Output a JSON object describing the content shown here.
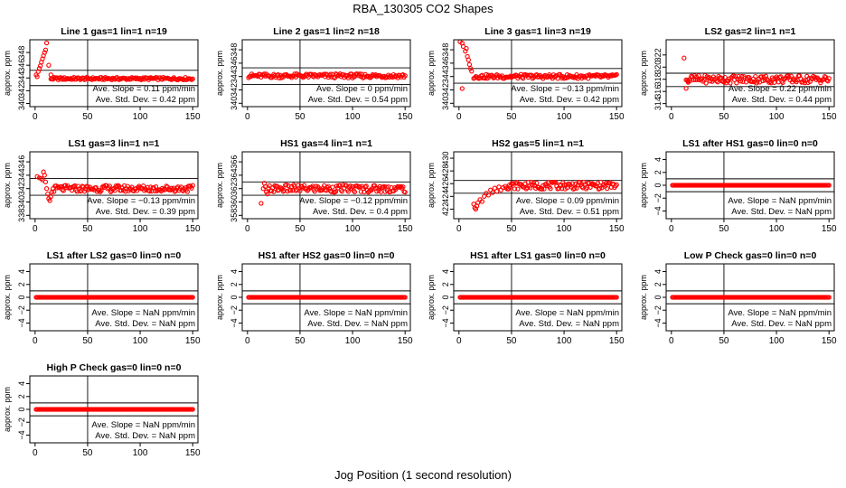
{
  "title": "RBA_130305  CO2 Shapes",
  "xlabel": "Jog Position (1 second resolution)",
  "chart_data": [
    {
      "type": "scatter",
      "title": "Line 1 gas=1 lin=1 n=19",
      "ylabel": "approx. ppm",
      "ylim": [
        339.5,
        350
      ],
      "yticks": [
        340,
        342,
        344,
        346,
        348
      ],
      "xlim": [
        -5,
        155
      ],
      "xticks": [
        0,
        50,
        100,
        150
      ],
      "vline": 50,
      "hlines": [
        342.8,
        345.2
      ],
      "slope_text": "Ave. Slope =  0.11  ppm/min",
      "sd_text": "Ave. Std. Dev. =  0.42  ppm",
      "series": {
        "base": 343.9,
        "noise": 0.12,
        "from": 15,
        "to": 150,
        "transient": [
          [
            1,
            344.5
          ],
          [
            2,
            344.2
          ],
          [
            3,
            345.0
          ],
          [
            4,
            345.5
          ],
          [
            5,
            345.9
          ],
          [
            6,
            346.5
          ],
          [
            7,
            347.0
          ],
          [
            8,
            347.5
          ],
          [
            9,
            348.0
          ],
          [
            10,
            348.4
          ],
          [
            11,
            349.5
          ],
          [
            13,
            346.0
          ],
          [
            15,
            344.5
          ]
        ]
      }
    },
    {
      "type": "scatter",
      "title": "Line 2 gas=1 lin=2 n=18",
      "ylabel": "approx. ppm",
      "ylim": [
        339.5,
        349.5
      ],
      "yticks": [
        340,
        342,
        344,
        346,
        348
      ],
      "xlim": [
        -5,
        155
      ],
      "xticks": [
        0,
        50,
        100,
        150
      ],
      "vline": 50,
      "hlines": [
        342.8,
        345.3
      ],
      "slope_text": "Ave. Slope =  0  ppm/min",
      "sd_text": "Ave. Std. Dev. =  0.54  ppm",
      "series": {
        "base": 344.1,
        "noise": 0.2,
        "from": 1,
        "to": 150,
        "transient": []
      }
    },
    {
      "type": "scatter",
      "title": "Line 3 gas=1 lin=3 n=19",
      "ylabel": "approx. ppm",
      "ylim": [
        339.5,
        349.5
      ],
      "yticks": [
        340,
        342,
        344,
        346,
        348
      ],
      "xlim": [
        -5,
        155
      ],
      "xticks": [
        0,
        50,
        100,
        150
      ],
      "vline": 50,
      "hlines": [
        343.0,
        345.2
      ],
      "slope_text": "Ave. Slope =  −0.13  ppm/min",
      "sd_text": "Ave. Std. Dev. =  0.42  ppm",
      "series": {
        "base": 344.0,
        "noise": 0.2,
        "from": 14,
        "to": 150,
        "transient": [
          [
            1,
            349.2
          ],
          [
            3,
            349.0
          ],
          [
            4,
            348.5
          ],
          [
            6,
            347.8
          ],
          [
            7,
            348.2
          ],
          [
            8,
            347.0
          ],
          [
            9,
            346.5
          ],
          [
            10,
            345.8
          ],
          [
            11,
            345.2
          ],
          [
            12,
            344.8
          ],
          [
            3,
            342.2
          ]
        ]
      }
    },
    {
      "type": "scatter",
      "title": "LS2 gas=2 lin=1 n=1",
      "ylabel": "approx. ppm",
      "ylim": [
        313.5,
        324.5
      ],
      "yticks": [
        314,
        316,
        318,
        320,
        322
      ],
      "xlim": [
        -5,
        155
      ],
      "xticks": [
        0,
        50,
        100,
        150
      ],
      "vline": 50,
      "hlines": [
        316.8,
        319.0
      ],
      "slope_text": "Ave. Slope =  0.22  ppm/min",
      "sd_text": "Ave. Std. Dev. =  0.44  ppm",
      "series": {
        "base": 318.0,
        "noise": 0.4,
        "from": 14,
        "to": 150,
        "transient": [
          [
            12,
            321.5
          ],
          [
            14,
            316.5
          ],
          [
            16,
            317.5
          ]
        ]
      }
    },
    {
      "type": "scatter",
      "title": "LS1 gas=3 lin=1 n=1",
      "ylabel": "approx. ppm",
      "ylim": [
        337.5,
        347.5
      ],
      "yticks": [
        338,
        340,
        342,
        344,
        346
      ],
      "xlim": [
        -5,
        155
      ],
      "xticks": [
        0,
        50,
        100,
        150
      ],
      "vline": 50,
      "hlines": [
        341.0,
        343.5
      ],
      "slope_text": "Ave. Slope =  −0.13  ppm/min",
      "sd_text": "Ave. Std. Dev. =  0.39  ppm",
      "series": {
        "base": 342.0,
        "noise": 0.3,
        "from": 18,
        "to": 150,
        "transient": [
          [
            2,
            343.8
          ],
          [
            4,
            343.6
          ],
          [
            6,
            343.5
          ],
          [
            7,
            343.3
          ],
          [
            8,
            344.5
          ],
          [
            9,
            344.0
          ],
          [
            10,
            343.0
          ],
          [
            11,
            342.0
          ],
          [
            12,
            341.2
          ],
          [
            13,
            340.5
          ],
          [
            14,
            340.2
          ],
          [
            15,
            340.8
          ],
          [
            16,
            341.5
          ],
          [
            17,
            342.0
          ]
        ]
      }
    },
    {
      "type": "scatter",
      "title": "HS1 gas=4 lin=1 n=1",
      "ylabel": "approx. ppm",
      "ylim": [
        357.5,
        367.5
      ],
      "yticks": [
        358,
        360,
        362,
        364,
        366
      ],
      "xlim": [
        -5,
        155
      ],
      "xticks": [
        0,
        50,
        100,
        150
      ],
      "vline": 50,
      "hlines": [
        361.0,
        363.0
      ],
      "slope_text": "Ave. Slope =  −0.12  ppm/min",
      "sd_text": "Ave. Std. Dev. =  0.4  ppm",
      "series": {
        "base": 362.0,
        "noise": 0.35,
        "from": 20,
        "to": 150,
        "transient": [
          [
            13,
            359.8
          ],
          [
            15,
            362.0
          ],
          [
            16,
            362.8
          ],
          [
            17,
            362.3
          ],
          [
            18,
            361.5
          ],
          [
            19,
            361.2
          ]
        ]
      }
    },
    {
      "type": "scatter",
      "title": "HS2 gas=5 lin=1 n=1",
      "ylabel": "approx. ppm",
      "ylim": [
        420.5,
        431
      ],
      "yticks": [
        422,
        424,
        426,
        428,
        430
      ],
      "xlim": [
        -5,
        155
      ],
      "xticks": [
        0,
        50,
        100,
        150
      ],
      "vline": 50,
      "hlines": [
        424.5,
        426.5
      ],
      "slope_text": "Ave. Slope =  0.09  ppm/min",
      "sd_text": "Ave. Std. Dev. =  0.51  ppm",
      "series": {
        "base": 425.7,
        "noise": 0.35,
        "from": 45,
        "to": 150,
        "transient": [
          [
            14,
            422.8
          ],
          [
            15,
            422.2
          ],
          [
            16,
            422.0
          ],
          [
            17,
            422.5
          ],
          [
            18,
            423.0
          ],
          [
            20,
            423.5
          ],
          [
            22,
            423.2
          ],
          [
            24,
            424.0
          ],
          [
            26,
            424.5
          ],
          [
            28,
            424.2
          ],
          [
            30,
            425.0
          ],
          [
            32,
            424.6
          ],
          [
            34,
            425.3
          ],
          [
            36,
            424.8
          ],
          [
            38,
            425.5
          ],
          [
            40,
            425.0
          ],
          [
            42,
            425.4
          ],
          [
            44,
            425.6
          ]
        ]
      }
    },
    {
      "type": "scatter",
      "title": "LS1 after HS1 gas=0 lin=0 n=0",
      "ylabel": "approx. ppm",
      "ylim": [
        -5.2,
        5.2
      ],
      "yticks": [
        -4,
        -2,
        0,
        2,
        4
      ],
      "xlim": [
        -5,
        155
      ],
      "xticks": [
        0,
        50,
        100,
        150
      ],
      "vline": 50,
      "hlines": [
        -1,
        1
      ],
      "slope_text": "Ave. Slope =  NaN  ppm/min",
      "sd_text": "Ave. Std. Dev. =  NaN  ppm",
      "series": {
        "base": 0,
        "noise": 0,
        "from": 1,
        "to": 150,
        "transient": []
      }
    },
    {
      "type": "scatter",
      "title": "LS1 after LS2 gas=0 lin=0 n=0",
      "ylabel": "approx. ppm",
      "ylim": [
        -5.2,
        5.2
      ],
      "yticks": [
        -4,
        -2,
        0,
        2,
        4
      ],
      "xlim": [
        -5,
        155
      ],
      "xticks": [
        0,
        50,
        100,
        150
      ],
      "vline": 50,
      "hlines": [
        -1,
        1
      ],
      "slope_text": "Ave. Slope =  NaN  ppm/min",
      "sd_text": "Ave. Std. Dev. =  NaN  ppm",
      "series": {
        "base": 0,
        "noise": 0,
        "from": 1,
        "to": 150,
        "transient": []
      }
    },
    {
      "type": "scatter",
      "title": "HS1 after HS2 gas=0 lin=0 n=0",
      "ylabel": "approx. ppm",
      "ylim": [
        -5.2,
        5.2
      ],
      "yticks": [
        -4,
        -2,
        0,
        2,
        4
      ],
      "xlim": [
        -5,
        155
      ],
      "xticks": [
        0,
        50,
        100,
        150
      ],
      "vline": 50,
      "hlines": [
        -1,
        1
      ],
      "slope_text": "Ave. Slope =  NaN  ppm/min",
      "sd_text": "Ave. Std. Dev. =  NaN  ppm",
      "series": {
        "base": 0,
        "noise": 0,
        "from": 1,
        "to": 150,
        "transient": []
      }
    },
    {
      "type": "scatter",
      "title": "HS1 after LS1 gas=0 lin=0 n=0",
      "ylabel": "approx. ppm",
      "ylim": [
        -5.2,
        5.2
      ],
      "yticks": [
        -4,
        -2,
        0,
        2,
        4
      ],
      "xlim": [
        -5,
        155
      ],
      "xticks": [
        0,
        50,
        100,
        150
      ],
      "vline": 50,
      "hlines": [
        -1,
        1
      ],
      "slope_text": "Ave. Slope =  NaN  ppm/min",
      "sd_text": "Ave. Std. Dev. =  NaN  ppm",
      "series": {
        "base": 0,
        "noise": 0,
        "from": 1,
        "to": 150,
        "transient": []
      }
    },
    {
      "type": "scatter",
      "title": "Low P Check gas=0 lin=0 n=0",
      "ylabel": "approx. ppm",
      "ylim": [
        -5.2,
        5.2
      ],
      "yticks": [
        -4,
        -2,
        0,
        2,
        4
      ],
      "xlim": [
        -5,
        155
      ],
      "xticks": [
        0,
        50,
        100,
        150
      ],
      "vline": 50,
      "hlines": [
        -1,
        1
      ],
      "slope_text": "Ave. Slope =  NaN  ppm/min",
      "sd_text": "Ave. Std. Dev. =  NaN  ppm",
      "series": {
        "base": 0,
        "noise": 0,
        "from": 1,
        "to": 150,
        "transient": []
      }
    },
    {
      "type": "scatter",
      "title": "High P Check gas=0 lin=0 n=0",
      "ylabel": "approx. ppm",
      "ylim": [
        -5.2,
        5.2
      ],
      "yticks": [
        -4,
        -2,
        0,
        2,
        4
      ],
      "xlim": [
        -5,
        155
      ],
      "xticks": [
        0,
        50,
        100,
        150
      ],
      "vline": 50,
      "hlines": [
        -1,
        1
      ],
      "slope_text": "Ave. Slope =  NaN  ppm/min",
      "sd_text": "Ave. Std. Dev. =  NaN  ppm",
      "series": {
        "base": 0,
        "noise": 0,
        "from": 1,
        "to": 150,
        "transient": []
      }
    }
  ]
}
